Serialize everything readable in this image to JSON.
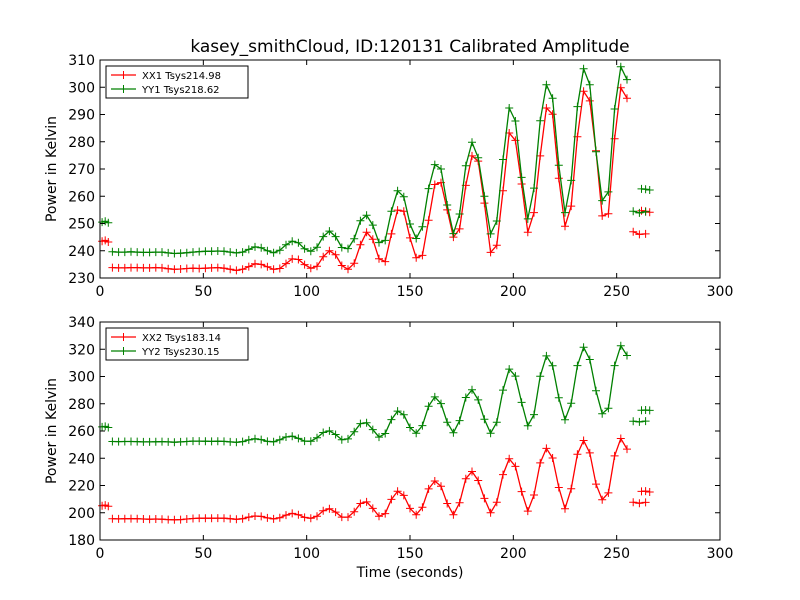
{
  "chart_data": [
    {
      "type": "line",
      "title": "kasey_smithCloud, ID:120131 Calibrated Amplitude",
      "xlabel": "",
      "ylabel": "Power in Kelvin",
      "xlim": [
        0,
        300
      ],
      "ylim": [
        230,
        310
      ],
      "x_ticks": [
        "0",
        "50",
        "100",
        "150",
        "200",
        "250",
        "300"
      ],
      "y_ticks": [
        "230",
        "240",
        "250",
        "260",
        "270",
        "280",
        "290",
        "300",
        "310"
      ],
      "legend_position": "upper-left",
      "grid": false,
      "marker": "+",
      "series": [
        {
          "name": "XX1 Tsys214.98",
          "color": "#ff0000",
          "segments": [
            {
              "x": [
                1,
                2.5,
                4
              ],
              "y": [
                243.5,
                243.8,
                243.2
              ]
            },
            {
              "x": [
                6,
                9,
                12,
                15,
                18,
                21,
                24,
                27,
                30,
                33,
                36,
                39,
                42,
                45,
                48,
                51,
                54,
                57,
                60,
                63,
                66,
                69,
                72,
                75,
                78,
                81,
                84,
                87,
                90,
                93,
                96,
                99,
                102,
                105,
                108,
                111,
                114,
                117,
                120,
                123,
                126,
                129,
                132,
                135,
                138,
                141,
                144,
                147,
                150,
                153,
                156,
                159,
                162,
                165,
                168,
                171,
                174,
                177,
                180,
                183,
                186,
                189,
                192,
                195,
                198,
                201,
                204,
                207,
                210,
                213,
                216,
                219,
                222,
                225,
                228,
                231,
                234,
                237,
                240,
                243,
                246,
                249,
                252,
                255
              ],
              "y": [
                233.8,
                233.7,
                233.7,
                233.8,
                233.8,
                233.7,
                233.7,
                233.8,
                233.7,
                233.4,
                233.2,
                233.3,
                233.5,
                233.6,
                233.5,
                233.6,
                233.7,
                233.8,
                233.6,
                233.2,
                232.8,
                233.2,
                234.2,
                235.2,
                235.0,
                234.1,
                233.2,
                233.5,
                235.3,
                237.0,
                236.8,
                234.9,
                233.6,
                234.3,
                237.8,
                240.0,
                238.5,
                234.6,
                233.2,
                235.4,
                242.2,
                246.8,
                244.2,
                237.1,
                236.0,
                246.2,
                254.9,
                254.5,
                244.7,
                237.4,
                238.3,
                251.2,
                264.3,
                265.0,
                255.0,
                245.0,
                248.0,
                264.0,
                274.8,
                272.9,
                257.5,
                239.4,
                242.0,
                262.0,
                283.2,
                280.5,
                264.5,
                246.8,
                254.0,
                274.8,
                292.4,
                290.1,
                266.6,
                249.0,
                256.4,
                281.8,
                298.5,
                295.0,
                276.7,
                252.8,
                253.6,
                281.1,
                299.8,
                296.0
              ]
            },
            {
              "x": [
                258,
                261,
                264
              ],
              "y": [
                247.0,
                246.0,
                246.2
              ]
            },
            {
              "x": [
                262,
                264,
                266
              ],
              "y": [
                254.7,
                254.5,
                254.1
              ]
            }
          ]
        },
        {
          "name": "YY1 Tsys218.62",
          "color": "#008000",
          "segments": [
            {
              "x": [
                1,
                2.5,
                4
              ],
              "y": [
                250.5,
                250.8,
                250.3
              ]
            },
            {
              "x": [
                6,
                9,
                12,
                15,
                18,
                21,
                24,
                27,
                30,
                33,
                36,
                39,
                42,
                45,
                48,
                51,
                54,
                57,
                60,
                63,
                66,
                69,
                72,
                75,
                78,
                81,
                84,
                87,
                90,
                93,
                96,
                99,
                102,
                105,
                108,
                111,
                114,
                117,
                120,
                123,
                126,
                129,
                132,
                135,
                138,
                141,
                144,
                147,
                150,
                153,
                156,
                159,
                162,
                165,
                168,
                171,
                174,
                177,
                180,
                183,
                186,
                189,
                192,
                195,
                198,
                201,
                204,
                207,
                210,
                213,
                216,
                219,
                222,
                225,
                228,
                231,
                234,
                237,
                240,
                243,
                246,
                249,
                252,
                255
              ],
              "y": [
                239.6,
                239.5,
                239.5,
                239.6,
                239.5,
                239.4,
                239.4,
                239.5,
                239.5,
                239.2,
                239.0,
                239.1,
                239.3,
                239.5,
                239.7,
                239.8,
                239.8,
                239.9,
                239.8,
                239.5,
                239.2,
                239.5,
                240.5,
                241.4,
                241.1,
                240.0,
                239.3,
                240.2,
                242.2,
                243.5,
                242.9,
                240.7,
                239.8,
                241.3,
                245.2,
                247.2,
                245.2,
                241.2,
                240.8,
                244.4,
                251.0,
                253.0,
                249.4,
                243.0,
                243.8,
                254.5,
                262.0,
                259.8,
                249.8,
                244.5,
                248.8,
                262.8,
                271.6,
                270.0,
                256.8,
                246.3,
                253.5,
                271.2,
                279.8,
                274.1,
                260.0,
                246.2,
                250.9,
                273.5,
                292.4,
                287.6,
                266.9,
                251.7,
                263.0,
                287.7,
                300.9,
                296.0,
                271.4,
                254.0,
                265.8,
                292.9,
                306.8,
                300.9,
                276.3,
                258.4,
                261.6,
                292.0,
                307.5,
                302.8
              ]
            },
            {
              "x": [
                258,
                261,
                264
              ],
              "y": [
                254.5,
                253.9,
                254.3
              ]
            },
            {
              "x": [
                262,
                264,
                266
              ],
              "y": [
                262.7,
                262.6,
                262.3
              ]
            }
          ]
        }
      ]
    },
    {
      "type": "line",
      "title": "",
      "xlabel": "Time (seconds)",
      "ylabel": "Power in Kelvin",
      "xlim": [
        0,
        300
      ],
      "ylim": [
        180,
        340
      ],
      "x_ticks": [
        "0",
        "50",
        "100",
        "150",
        "200",
        "250",
        "300"
      ],
      "y_ticks": [
        "180",
        "200",
        "220",
        "240",
        "260",
        "280",
        "300",
        "320",
        "340"
      ],
      "legend_position": "upper-left",
      "grid": false,
      "marker": "+",
      "series": [
        {
          "name": "XX2 Tsys183.14",
          "color": "#ff0000",
          "segments": [
            {
              "x": [
                1,
                2.5,
                4
              ],
              "y": [
                205.2,
                205.6,
                204.8
              ]
            },
            {
              "x": [
                6,
                9,
                12,
                15,
                18,
                21,
                24,
                27,
                30,
                33,
                36,
                39,
                42,
                45,
                48,
                51,
                54,
                57,
                60,
                63,
                66,
                69,
                72,
                75,
                78,
                81,
                84,
                87,
                90,
                93,
                96,
                99,
                102,
                105,
                108,
                111,
                114,
                117,
                120,
                123,
                126,
                129,
                132,
                135,
                138,
                141,
                144,
                147,
                150,
                153,
                156,
                159,
                162,
                165,
                168,
                171,
                174,
                177,
                180,
                183,
                186,
                189,
                192,
                195,
                198,
                201,
                204,
                207,
                210,
                213,
                216,
                219,
                222,
                225,
                228,
                231,
                234,
                237,
                240,
                243,
                246,
                249,
                252,
                255
              ],
              "y": [
                195.6,
                195.5,
                195.6,
                195.7,
                195.6,
                195.4,
                195.3,
                195.4,
                195.3,
                195.0,
                194.8,
                195.0,
                195.4,
                195.8,
                196.0,
                196.0,
                196.0,
                196.1,
                196.0,
                195.6,
                195.2,
                195.6,
                196.8,
                197.6,
                197.3,
                196.2,
                195.5,
                196.3,
                198.3,
                199.5,
                198.6,
                196.6,
                195.9,
                197.5,
                201.4,
                203.0,
                200.5,
                196.8,
                196.8,
                200.8,
                206.8,
                208.0,
                203.2,
                197.4,
                199.4,
                209.8,
                215.8,
                212.7,
                203.2,
                198.6,
                204.0,
                217.5,
                223.3,
                219.5,
                206.8,
                198.6,
                207.3,
                225.0,
                230.3,
                223.7,
                210.5,
                200.0,
                207.7,
                228.0,
                239.6,
                234.0,
                215.5,
                201.2,
                213.0,
                236.6,
                247.2,
                240.2,
                218.5,
                203.0,
                217.6,
                243.0,
                253.0,
                243.9,
                221.0,
                209.6,
                214.6,
                241.7,
                254.5,
                246.7
              ]
            },
            {
              "x": [
                258,
                261,
                264
              ],
              "y": [
                207.7,
                207.0,
                207.6
              ]
            },
            {
              "x": [
                262,
                264,
                266
              ],
              "y": [
                215.7,
                215.9,
                215.2
              ]
            }
          ]
        },
        {
          "name": "YY2 Tsys230.15",
          "color": "#008000",
          "segments": [
            {
              "x": [
                1,
                2.5,
                4
              ],
              "y": [
                263.0,
                263.4,
                262.6
              ]
            },
            {
              "x": [
                6,
                9,
                12,
                15,
                18,
                21,
                24,
                27,
                30,
                33,
                36,
                39,
                42,
                45,
                48,
                51,
                54,
                57,
                60,
                63,
                66,
                69,
                72,
                75,
                78,
                81,
                84,
                87,
                90,
                93,
                96,
                99,
                102,
                105,
                108,
                111,
                114,
                117,
                120,
                123,
                126,
                129,
                132,
                135,
                138,
                141,
                144,
                147,
                150,
                153,
                156,
                159,
                162,
                165,
                168,
                171,
                174,
                177,
                180,
                183,
                186,
                189,
                192,
                195,
                198,
                201,
                204,
                207,
                210,
                213,
                216,
                219,
                222,
                225,
                228,
                231,
                234,
                237,
                240,
                243,
                246,
                249,
                252,
                255
              ],
              "y": [
                252.3,
                252.2,
                252.3,
                252.3,
                252.2,
                252.0,
                252.0,
                252.1,
                252.2,
                252.0,
                251.8,
                252.0,
                252.3,
                252.6,
                252.6,
                252.5,
                252.4,
                252.5,
                252.4,
                252.0,
                251.7,
                252.2,
                253.5,
                254.3,
                253.7,
                252.4,
                252.1,
                253.6,
                255.6,
                256.2,
                254.6,
                252.6,
                252.5,
                255.1,
                258.9,
                260.1,
                257.4,
                253.6,
                254.2,
                259.4,
                265.4,
                266.0,
                261.0,
                255.5,
                258.2,
                268.4,
                274.6,
                271.9,
                262.6,
                258.4,
                264.0,
                278.2,
                285.0,
                280.1,
                266.4,
                258.7,
                267.6,
                284.6,
                290.3,
                282.8,
                268.6,
                258.4,
                266.4,
                290.0,
                305.4,
                300.3,
                281.0,
                263.8,
                272.0,
                300.2,
                315.1,
                307.9,
                284.4,
                268.3,
                280.3,
                308.0,
                321.4,
                312.5,
                289.5,
                272.7,
                276.7,
                308.0,
                322.6,
                315.4
              ]
            },
            {
              "x": [
                258,
                261,
                264
              ],
              "y": [
                267.2,
                266.7,
                267.3
              ]
            },
            {
              "x": [
                262,
                264,
                266
              ],
              "y": [
                275.2,
                275.4,
                275.1
              ]
            }
          ]
        }
      ]
    }
  ]
}
